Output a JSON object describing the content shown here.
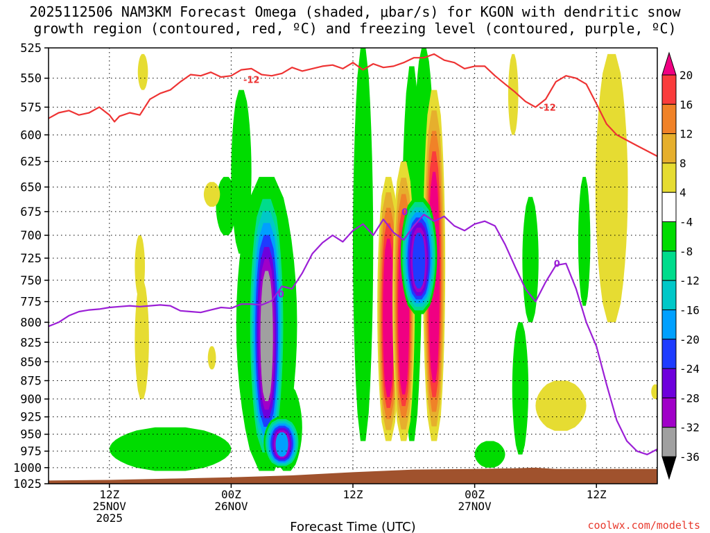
{
  "title": {
    "line1": "2025112506 NAM3KM Forecast Omega (shaded, μbar/s) for KGON with dendritic snow",
    "line2": "growth region (contoured, red, ºC) and freezing level (contoured, purple, ºC)"
  },
  "credit": "coolwx.com/modelts",
  "chart_data": {
    "type": "heatmap",
    "title": "2025112506 NAM3KM Forecast Omega (shaded, μbar/s) for KGON with dendritic snow growth region (contoured, red, ºC) and freezing level (contoured, purple, ºC)",
    "xlabel": "Forecast Time (UTC)",
    "ylabel": "",
    "x_unit": "forecast hour from 2025-11-25 06Z",
    "xlim": [
      0,
      60
    ],
    "x_ticks": [
      {
        "x": 6,
        "labels": [
          "12Z",
          "25NOV",
          "2025"
        ]
      },
      {
        "x": 18,
        "labels": [
          "00Z",
          "26NOV"
        ]
      },
      {
        "x": 30,
        "labels": [
          "12Z"
        ]
      },
      {
        "x": 42,
        "labels": [
          "00Z",
          "27NOV"
        ]
      },
      {
        "x": 54,
        "labels": [
          "12Z"
        ]
      }
    ],
    "y_scale": "log-pressure",
    "ylim": [
      1025,
      525
    ],
    "y_ticks": [
      525,
      550,
      575,
      600,
      625,
      650,
      675,
      700,
      725,
      750,
      775,
      800,
      825,
      850,
      875,
      900,
      925,
      950,
      975,
      1000,
      1025
    ],
    "grid": true,
    "colorbar": {
      "levels": [
        -36,
        -32,
        -28,
        -24,
        -20,
        -16,
        -12,
        -8,
        -4,
        4,
        8,
        12,
        16,
        20
      ],
      "colors": [
        "#000000",
        "#a0a0a0",
        "#a000c8",
        "#6e00dc",
        "#1e3cff",
        "#00a0ff",
        "#00c8c8",
        "#00dc8c",
        "#00dc00",
        "#ffffff",
        "#e6dc32",
        "#e6af2d",
        "#f08228",
        "#fa3c3c",
        "#f00082"
      ]
    },
    "omega_features": [
      {
        "x_center": 21.5,
        "p_top": 650,
        "p_bottom": 990,
        "min": -34
      },
      {
        "x_center": 23.0,
        "p_top": 925,
        "p_bottom": 1000,
        "min": -20
      },
      {
        "x_center": 33.5,
        "p_top": 640,
        "p_bottom": 960,
        "max": 24
      },
      {
        "x_center": 35.0,
        "p_top": 625,
        "p_bottom": 960,
        "max": 24
      },
      {
        "x_center": 38.0,
        "p_top": 560,
        "p_bottom": 960,
        "max": 24
      },
      {
        "x_center": 36.5,
        "p_top": 660,
        "p_bottom": 790,
        "min": -22
      }
    ],
    "series": [
      {
        "label": "-12",
        "color": "#ee3333",
        "x": [
          0,
          1,
          2,
          3,
          4,
          5,
          6,
          6.5,
          7,
          8,
          9,
          10,
          11,
          12,
          13,
          14,
          15,
          16,
          17,
          18,
          19,
          20,
          21,
          22,
          23,
          24,
          25,
          26,
          27,
          28,
          29,
          30,
          31,
          32,
          33,
          34,
          35,
          36,
          37,
          38,
          39,
          40,
          41,
          42,
          43,
          44,
          45,
          46,
          47,
          48,
          49,
          50,
          51,
          52,
          53,
          54,
          55,
          56,
          57,
          58,
          59,
          60
        ],
        "y": [
          585,
          580,
          578,
          582,
          580,
          575,
          582,
          588,
          583,
          580,
          582,
          568,
          563,
          560,
          553,
          547,
          548,
          545,
          549,
          548,
          543,
          542,
          547,
          548,
          546,
          541,
          544,
          542,
          540,
          539,
          542,
          537,
          543,
          538,
          541,
          540,
          537,
          533,
          533,
          530,
          535,
          537,
          542,
          540,
          540,
          548,
          555,
          562,
          570,
          575,
          568,
          553,
          548,
          550,
          555,
          572,
          590,
          600,
          605,
          610,
          615,
          620
        ]
      },
      {
        "label": "0",
        "color": "#9b1fd6",
        "x": [
          0,
          1,
          2,
          3,
          4,
          5,
          6,
          7,
          8,
          9,
          10,
          11,
          12,
          13,
          14,
          15,
          16,
          17,
          18,
          19,
          20,
          21,
          22,
          23,
          24,
          25,
          26,
          27,
          28,
          29,
          30,
          31,
          32,
          33,
          34,
          35,
          36,
          37,
          38,
          39,
          40,
          41,
          42,
          43,
          44,
          45,
          46,
          47,
          48,
          49,
          50,
          51,
          52,
          53,
          54,
          55,
          56,
          57,
          58,
          59,
          60
        ],
        "y": [
          805,
          800,
          792,
          787,
          785,
          784,
          782,
          781,
          780,
          781,
          780,
          779,
          780,
          786,
          787,
          788,
          785,
          782,
          783,
          778,
          778,
          779,
          774,
          757,
          760,
          742,
          720,
          708,
          700,
          707,
          695,
          688,
          700,
          683,
          697,
          705,
          690,
          678,
          685,
          680,
          690,
          695,
          688,
          685,
          690,
          710,
          735,
          760,
          775,
          752,
          733,
          731,
          760,
          800,
          830,
          880,
          930,
          960,
          975,
          980,
          972
        ]
      }
    ],
    "contour_labels": [
      {
        "text": "-12",
        "x": 19.2,
        "y": 551
      },
      {
        "text": "-12",
        "x": 48.4,
        "y": 575
      },
      {
        "text": "0",
        "x": 22.6,
        "y": 766
      },
      {
        "text": "0",
        "x": 34.8,
        "y": 675
      },
      {
        "text": "0",
        "x": 49.8,
        "y": 731
      }
    ],
    "terrain": {
      "color": "#a0522d",
      "x": [
        0,
        6,
        12,
        18,
        24,
        30,
        36,
        42,
        46,
        48,
        50,
        54,
        60
      ],
      "surface_p": [
        1020,
        1019,
        1017,
        1015,
        1012,
        1007,
        1003,
        1002,
        1001,
        1000,
        1002,
        1002,
        1002
      ]
    }
  }
}
